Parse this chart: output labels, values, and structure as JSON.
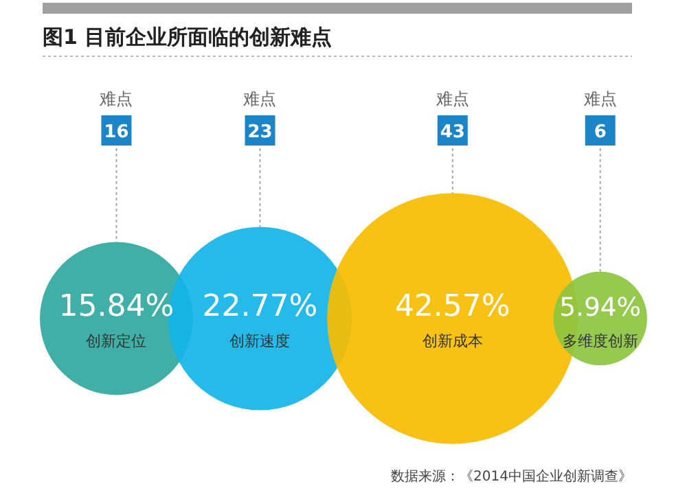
{
  "chart_data": {
    "type": "other",
    "title": "图1  目前企业所面临的创新难点",
    "categories": [
      "创新定位",
      "创新速度",
      "创新成本",
      "多维度创新"
    ],
    "series": [
      {
        "name": "难点",
        "color": "#1b85c8",
        "values": [
          16,
          23,
          43,
          6
        ],
        "value_labels": [
          "16",
          "23",
          "43",
          "6"
        ]
      },
      {
        "values": [
          15.84,
          22.77,
          42.57,
          5.94
        ],
        "value_labels": [
          "15.84%",
          "22.77%",
          "42.57%",
          "5.94%"
        ],
        "colors": [
          "#2fa8a0",
          "#12b4e8",
          "#f7bd00",
          "#8dc63f"
        ]
      }
    ],
    "annotations": [
      "数据来源：《2014中国企业创新调查》"
    ]
  }
}
